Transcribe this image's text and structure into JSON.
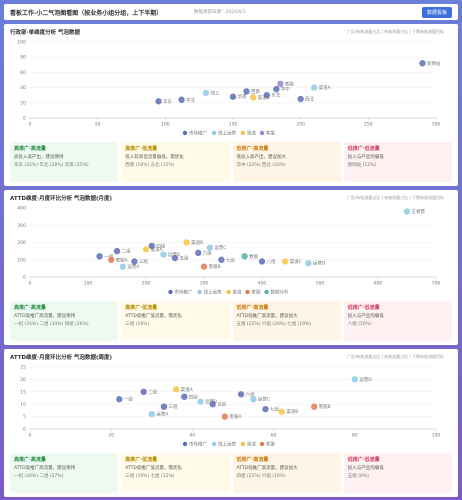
{
  "header": {
    "title": "看板工作·小二气泡图看图（按业务小组分组，上下半期）",
    "subtitle": "数据更新日期：2024/6/1",
    "button": "数据看板"
  },
  "chart_data": [
    {
      "type": "scatter",
      "title": "行政部·单维度分析 气泡数据",
      "note": "广告/有效流量占比 | 有效流量占比 | 下期有效流量目标",
      "xlim": [
        0,
        300
      ],
      "xticks": [
        0,
        50,
        100,
        150,
        200,
        250,
        300
      ],
      "ylim": [
        0,
        100
      ],
      "yticks": [
        0,
        20,
        40,
        60,
        80,
        100
      ],
      "series": [
        {
          "name": "市场推广",
          "color": "#5b6fb5",
          "x": [
            95,
            112,
            150,
            160,
            175,
            182,
            200,
            290
          ],
          "values": [
            22,
            24,
            28,
            35,
            30,
            38,
            25,
            72
          ],
          "labels": [
            "华东",
            "华北",
            "华南",
            "西南",
            "东北",
            "华中",
            "西北",
            "新网站"
          ]
        },
        {
          "name": "线上运营",
          "color": "#8ecae6",
          "x": [
            130,
            210
          ],
          "values": [
            33,
            40
          ],
          "labels": [
            "线上",
            "渠道A"
          ]
        },
        {
          "name": "渠道",
          "color": "#f4c542",
          "x": [
            165
          ],
          "values": [
            27
          ],
          "labels": [
            "渠道B"
          ]
        },
        {
          "name": "客服",
          "color": "#9b7fd1",
          "x": [
            185
          ],
          "values": [
            45
          ],
          "labels": [
            "客服"
          ]
        }
      ],
      "cards": [
        {
          "title": "高推广·高流量",
          "desc": "高投入高产出，建议保持",
          "items": "华东 (32%)  华北 (28%)  华南 (25%)"
        },
        {
          "title": "高推广·低流量",
          "desc": "投入较高但流量偏低，需优化",
          "items": "西南 (18%)  东北 (15%)"
        },
        {
          "title": "低推广·高流量",
          "desc": "低投入高产出，建议加大",
          "items": "华中 (22%)  西北 (20%)"
        },
        {
          "title": "低推广·低流量",
          "desc": "投入与产出均偏低",
          "items": "新网站 (12%)"
        }
      ]
    },
    {
      "type": "scatter",
      "title": "ATTD维度·月度环比分析 气泡数据(月度)",
      "note": "广告/有效流量占比 | 有效流量占比 | 下期有效流量目标",
      "xlim": [
        0,
        700
      ],
      "xticks": [
        0,
        100,
        200,
        300,
        400,
        500,
        600,
        700
      ],
      "ylim": [
        0,
        400
      ],
      "yticks": [
        0,
        100,
        200,
        300,
        400
      ],
      "series": [
        {
          "name": "市场推广",
          "color": "#5b6fb5",
          "x": [
            120,
            150,
            180,
            210,
            250,
            290,
            330,
            400
          ],
          "values": [
            120,
            150,
            90,
            180,
            110,
            140,
            100,
            90
          ],
          "labels": [
            "一组",
            "二组",
            "三组",
            "四组",
            "五组",
            "六组",
            "七组",
            "八组"
          ]
        },
        {
          "name": "线上运营",
          "color": "#8ecae6",
          "x": [
            160,
            230,
            310,
            480,
            650
          ],
          "values": [
            60,
            130,
            170,
            80,
            380
          ],
          "labels": [
            "运营A",
            "运营B",
            "运营C",
            "运营D",
            "王者营"
          ]
        },
        {
          "name": "渠道",
          "color": "#f4c542",
          "x": [
            200,
            270,
            440
          ],
          "values": [
            160,
            200,
            90
          ],
          "labels": [
            "渠道A",
            "渠道B",
            "渠道C"
          ]
        },
        {
          "name": "客服",
          "color": "#e07b53",
          "x": [
            140,
            300
          ],
          "values": [
            100,
            60
          ],
          "labels": [
            "客服A",
            "客服B"
          ]
        },
        {
          "name": "数据分析",
          "color": "#4fb3a9",
          "x": [
            370
          ],
          "values": [
            120
          ],
          "labels": [
            "数据"
          ]
        }
      ],
      "cards": [
        {
          "title": "高推广·高流量",
          "desc": "ATTD高推广高流量，建议保持",
          "items": "一组 (35%)  二组 (30%)  四组 (26%)"
        },
        {
          "title": "高推广·低流量",
          "desc": "ATTD高推广低流量，需优化",
          "items": "三组 (18%)"
        },
        {
          "title": "低推广·高流量",
          "desc": "ATTD低推广高流量，建议加大",
          "items": "五组 (22%)  六组 (20%)  七组 (19%)"
        },
        {
          "title": "低推广·低流量",
          "desc": "投入与产出均偏低",
          "items": "八组 (10%)"
        }
      ]
    },
    {
      "type": "scatter",
      "title": "ATTD维度·月度环比分析 气泡数据(周度)",
      "note": "广告/有效流量占比 | 有效流量占比 | 下期有效流量目标",
      "xlim": [
        0,
        100
      ],
      "xticks": [
        0,
        20,
        40,
        60,
        80,
        100
      ],
      "ylim": [
        0,
        25
      ],
      "yticks": [
        0,
        5,
        10,
        15,
        20,
        25
      ],
      "series": [
        {
          "name": "市场推广",
          "color": "#5b6fb5",
          "x": [
            22,
            28,
            33,
            38,
            45,
            52,
            58
          ],
          "values": [
            12,
            15,
            9,
            13,
            10,
            14,
            8
          ],
          "labels": [
            "一组",
            "二组",
            "三组",
            "四组",
            "五组",
            "六组",
            "七组"
          ]
        },
        {
          "name": "线上运营",
          "color": "#8ecae6",
          "x": [
            30,
            42,
            55,
            80
          ],
          "values": [
            6,
            11,
            12,
            20
          ],
          "labels": [
            "运营A",
            "运营B",
            "运营C",
            "运营D"
          ]
        },
        {
          "name": "渠道",
          "color": "#f4c542",
          "x": [
            36,
            62
          ],
          "values": [
            16,
            7
          ],
          "labels": [
            "渠道A",
            "渠道B"
          ]
        },
        {
          "name": "客服",
          "color": "#e07b53",
          "x": [
            48,
            70
          ],
          "values": [
            5,
            9
          ],
          "labels": [
            "客服A",
            "客服B"
          ]
        }
      ],
      "cards": [
        {
          "title": "高推广·高流量",
          "desc": "ATTD高推广高流量，建议保持",
          "items": "一组 (30%)  二组 (27%)"
        },
        {
          "title": "高推广·低流量",
          "desc": "ATTD高推广低流量，需优化",
          "items": "三组 (16%)  七组 (12%)"
        },
        {
          "title": "低推广·高流量",
          "desc": "ATTD低推广高流量，建议加大",
          "items": "四组 (21%)  六组 (19%)"
        },
        {
          "title": "低推广·低流量",
          "desc": "投入与产出均偏低",
          "items": "五组 (9%)"
        }
      ]
    }
  ]
}
